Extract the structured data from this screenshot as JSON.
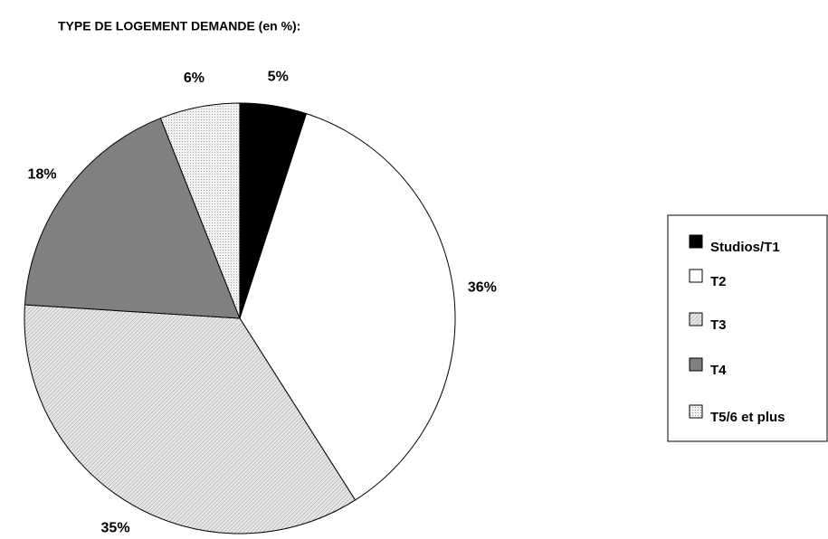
{
  "chart_data": {
    "type": "pie",
    "title": "TYPE DE LOGEMENT DEMANDE (en %):",
    "categories": [
      "Studios/T1",
      "T2",
      "T3",
      "T4",
      "T5/6 et plus"
    ],
    "values": [
      5,
      36,
      35,
      18,
      6
    ],
    "value_labels": [
      "5%",
      "36%",
      "35%",
      "18%",
      "6%"
    ],
    "colors": [
      "#000000",
      "#ffffff",
      "#c8c8c8",
      "#808080",
      "#e4e4e4"
    ],
    "legend": "right"
  }
}
